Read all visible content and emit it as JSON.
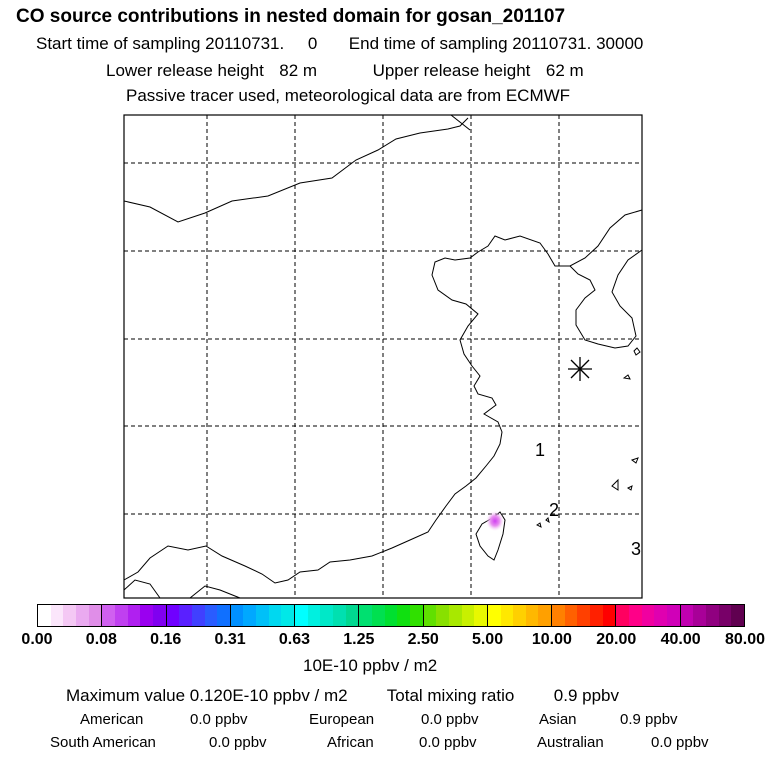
{
  "header": {
    "title": "CO  source contributions in nested domain for gosan_201107",
    "start_label": "Start time of sampling",
    "start_value": "20110731.     0",
    "end_label": "End time of sampling",
    "end_value": "20110731. 30000",
    "lower_label": "Lower release height",
    "lower_value": "82 m",
    "upper_label": "Upper release height",
    "upper_value": "62 m",
    "note": "Passive tracer used, meteorological data are from ECMWF"
  },
  "map": {
    "markers": [
      "1",
      "2",
      "3"
    ],
    "receptor_symbol": "asterisk"
  },
  "colorbar": {
    "ticks": [
      "0.00",
      "0.08",
      "0.16",
      "0.31",
      "0.63",
      "1.25",
      "2.50",
      "5.00",
      "10.00",
      "20.00",
      "40.00",
      "80.00"
    ],
    "unit": "10E-10 ppbv / m2",
    "groups": [
      [
        "#ffffff",
        "#fbe6fb",
        "#f4c8f4",
        "#eaaaf0",
        "#e08ee8"
      ],
      [
        "#d060f0",
        "#c040f0",
        "#b020f0",
        "#9a00f0",
        "#8000f0"
      ],
      [
        "#7000ff",
        "#5a20ff",
        "#4040ff",
        "#2a5cff",
        "#1070ff"
      ],
      [
        "#0090ff",
        "#00a8ff",
        "#00c0f8",
        "#00d8f0",
        "#00e8e8"
      ],
      [
        "#00ffff",
        "#00f0e0",
        "#00e8c8",
        "#00e0b0",
        "#00d890"
      ],
      [
        "#00e070",
        "#00e050",
        "#00e030",
        "#10e010",
        "#30e000"
      ],
      [
        "#60e000",
        "#88e000",
        "#a8e800",
        "#c8f000",
        "#e8f800"
      ],
      [
        "#ffff00",
        "#ffe800",
        "#ffd000",
        "#ffb800",
        "#ffa000"
      ],
      [
        "#ff8000",
        "#ff6000",
        "#ff4000",
        "#ff2000",
        "#ff0000"
      ],
      [
        "#ff0060",
        "#ff0088",
        "#f000a0",
        "#e000b0",
        "#d000b8"
      ],
      [
        "#c000b0",
        "#a80098",
        "#900080",
        "#780068",
        "#600050"
      ]
    ]
  },
  "summary": {
    "max_label": "Maximum value",
    "max_value": "0.120E-10 ppbv / m2",
    "total_label": "Total mixing ratio",
    "total_value": "0.9 ppbv"
  },
  "sources": [
    {
      "name": "American",
      "value": "0.0 ppbv"
    },
    {
      "name": "European",
      "value": "0.0 ppbv"
    },
    {
      "name": "Asian",
      "value": "0.9 ppbv"
    },
    {
      "name": "South American",
      "value": "0.0 ppbv"
    },
    {
      "name": "African",
      "value": "0.0 ppbv"
    },
    {
      "name": "Australian",
      "value": "0.0 ppbv"
    }
  ]
}
